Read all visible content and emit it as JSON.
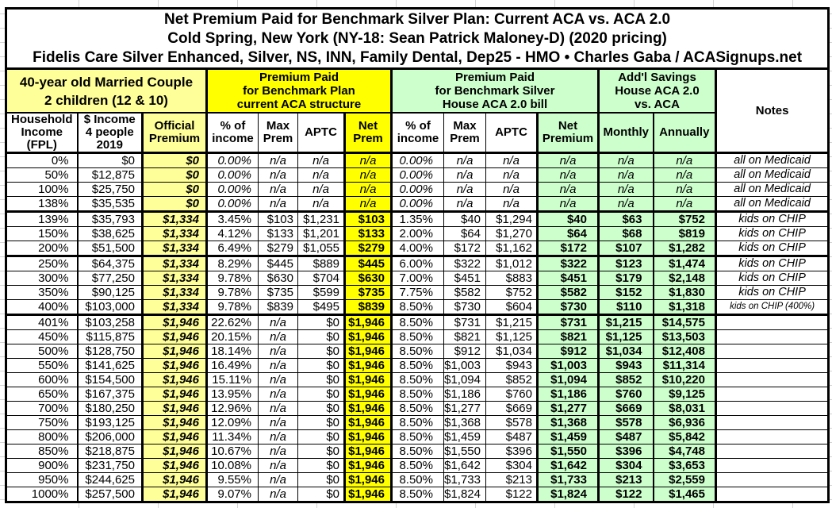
{
  "title_lines": [
    "Net Premium Paid for Benchmark Silver Plan: Current ACA vs. ACA 2.0",
    "Cold Spring, New York (NY-18: Sean Patrick Maloney-D) (2020 pricing)",
    "Fidelis Care Silver Enhanced, Silver, NS, INN, Family Dental, Dep25 - HMO • Charles Gaba / ACASignups.net"
  ],
  "colors": {
    "family_header": "#FFFF99",
    "aca_current_header": "#FFFF00",
    "aca_20_header": "#CCFFCC",
    "border": "#000000",
    "faint_grid": "#D4D4D4"
  },
  "column_groups": {
    "family": {
      "label": "40-year old Married Couple\n2 children (12 & 10)",
      "color": "#FFFF99"
    },
    "aca_current": {
      "label": "Premium Paid\nfor Benchmark Plan\ncurrent ACA structure",
      "color": "#FFFF00"
    },
    "aca_20": {
      "label": "Premium Paid\nfor Benchmark Silver\nHouse ACA 2.0 bill",
      "color": "#CCFFCC"
    },
    "savings": {
      "label": "Add'l Savings\nHouse ACA 2.0\nvs. ACA",
      "color": "#CCFFCC"
    },
    "notes": {
      "label": "Notes"
    }
  },
  "columns": [
    "Household\nIncome\n(FPL)",
    "$ Income\n4 people\n2019",
    "Official\nPremium",
    "% of\nincome",
    "Max\nPrem",
    "APTC",
    "Net\nPrem",
    "% of\nincome",
    "Max\nPrem",
    "APTC",
    "Net\nPremium",
    "Monthly",
    "Annually"
  ],
  "rows": [
    {
      "band": "medicaid",
      "sep": false,
      "cells": [
        "0%",
        "$0",
        "$0",
        "0.00%",
        "n/a",
        "n/a",
        "n/a",
        "0.00%",
        "n/a",
        "n/a",
        "n/a",
        "n/a",
        "n/a",
        "all on Medicaid"
      ]
    },
    {
      "band": "medicaid",
      "sep": false,
      "cells": [
        "50%",
        "$12,875",
        "$0",
        "0.00%",
        "n/a",
        "n/a",
        "n/a",
        "0.00%",
        "n/a",
        "n/a",
        "n/a",
        "n/a",
        "n/a",
        "all on Medicaid"
      ]
    },
    {
      "band": "medicaid",
      "sep": false,
      "cells": [
        "100%",
        "$25,750",
        "$0",
        "0.00%",
        "n/a",
        "n/a",
        "n/a",
        "0.00%",
        "n/a",
        "n/a",
        "n/a",
        "n/a",
        "n/a",
        "all on Medicaid"
      ]
    },
    {
      "band": "medicaid",
      "sep": true,
      "cells": [
        "138%",
        "$35,535",
        "$0",
        "0.00%",
        "n/a",
        "n/a",
        "n/a",
        "0.00%",
        "n/a",
        "n/a",
        "n/a",
        "n/a",
        "n/a",
        "all on Medicaid"
      ]
    },
    {
      "band": "chip",
      "sep": false,
      "cells": [
        "139%",
        "$35,793",
        "$1,334",
        "3.45%",
        "$103",
        "$1,231",
        "$103",
        "1.35%",
        "$40",
        "$1,294",
        "$40",
        "$63",
        "$752",
        "kids on CHIP"
      ]
    },
    {
      "band": "chip",
      "sep": false,
      "cells": [
        "150%",
        "$38,625",
        "$1,334",
        "4.12%",
        "$133",
        "$1,201",
        "$133",
        "2.00%",
        "$64",
        "$1,270",
        "$64",
        "$68",
        "$819",
        "kids on CHIP"
      ]
    },
    {
      "band": "chip",
      "sep": true,
      "cells": [
        "200%",
        "$51,500",
        "$1,334",
        "6.49%",
        "$279",
        "$1,055",
        "$279",
        "4.00%",
        "$172",
        "$1,162",
        "$172",
        "$107",
        "$1,282",
        "kids on CHIP"
      ]
    },
    {
      "band": "chip",
      "sep": false,
      "cells": [
        "250%",
        "$64,375",
        "$1,334",
        "8.29%",
        "$445",
        "$889",
        "$445",
        "6.00%",
        "$322",
        "$1,012",
        "$322",
        "$123",
        "$1,474",
        "kids on CHIP"
      ]
    },
    {
      "band": "chip",
      "sep": false,
      "cells": [
        "300%",
        "$77,250",
        "$1,334",
        "9.78%",
        "$630",
        "$704",
        "$630",
        "7.00%",
        "$451",
        "$883",
        "$451",
        "$179",
        "$2,148",
        "kids on CHIP"
      ]
    },
    {
      "band": "chip",
      "sep": false,
      "cells": [
        "350%",
        "$90,125",
        "$1,334",
        "9.78%",
        "$735",
        "$599",
        "$735",
        "7.75%",
        "$582",
        "$752",
        "$582",
        "$152",
        "$1,830",
        "kids on CHIP"
      ]
    },
    {
      "band": "chip",
      "sep": true,
      "cells": [
        "400%",
        "$103,000",
        "$1,334",
        "9.78%",
        "$839",
        "$495",
        "$839",
        "8.50%",
        "$730",
        "$604",
        "$730",
        "$110",
        "$1,318",
        "kids on CHIP (400%)"
      ]
    },
    {
      "band": "over400",
      "sep": false,
      "cells": [
        "401%",
        "$103,258",
        "$1,946",
        "22.62%",
        "n/a",
        "$0",
        "$1,946",
        "8.50%",
        "$731",
        "$1,215",
        "$731",
        "$1,215",
        "$14,575",
        ""
      ]
    },
    {
      "band": "over400",
      "sep": false,
      "cells": [
        "450%",
        "$115,875",
        "$1,946",
        "20.15%",
        "n/a",
        "$0",
        "$1,946",
        "8.50%",
        "$821",
        "$1,125",
        "$821",
        "$1,125",
        "$13,503",
        ""
      ]
    },
    {
      "band": "over400",
      "sep": false,
      "cells": [
        "500%",
        "$128,750",
        "$1,946",
        "18.14%",
        "n/a",
        "$0",
        "$1,946",
        "8.50%",
        "$912",
        "$1,034",
        "$912",
        "$1,034",
        "$12,408",
        ""
      ]
    },
    {
      "band": "over400",
      "sep": false,
      "cells": [
        "550%",
        "$141,625",
        "$1,946",
        "16.49%",
        "n/a",
        "$0",
        "$1,946",
        "8.50%",
        "$1,003",
        "$943",
        "$1,003",
        "$943",
        "$11,314",
        ""
      ]
    },
    {
      "band": "over400",
      "sep": false,
      "cells": [
        "600%",
        "$154,500",
        "$1,946",
        "15.11%",
        "n/a",
        "$0",
        "$1,946",
        "8.50%",
        "$1,094",
        "$852",
        "$1,094",
        "$852",
        "$10,220",
        ""
      ]
    },
    {
      "band": "over400",
      "sep": false,
      "cells": [
        "650%",
        "$167,375",
        "$1,946",
        "13.95%",
        "n/a",
        "$0",
        "$1,946",
        "8.50%",
        "$1,186",
        "$760",
        "$1,186",
        "$760",
        "$9,125",
        ""
      ]
    },
    {
      "band": "over400",
      "sep": false,
      "cells": [
        "700%",
        "$180,250",
        "$1,946",
        "12.96%",
        "n/a",
        "$0",
        "$1,946",
        "8.50%",
        "$1,277",
        "$669",
        "$1,277",
        "$669",
        "$8,031",
        ""
      ]
    },
    {
      "band": "over400",
      "sep": false,
      "cells": [
        "750%",
        "$193,125",
        "$1,946",
        "12.09%",
        "n/a",
        "$0",
        "$1,946",
        "8.50%",
        "$1,368",
        "$578",
        "$1,368",
        "$578",
        "$6,936",
        ""
      ]
    },
    {
      "band": "over400",
      "sep": false,
      "cells": [
        "800%",
        "$206,000",
        "$1,946",
        "11.34%",
        "n/a",
        "$0",
        "$1,946",
        "8.50%",
        "$1,459",
        "$487",
        "$1,459",
        "$487",
        "$5,842",
        ""
      ]
    },
    {
      "band": "over400",
      "sep": false,
      "cells": [
        "850%",
        "$218,875",
        "$1,946",
        "10.67%",
        "n/a",
        "$0",
        "$1,946",
        "8.50%",
        "$1,550",
        "$396",
        "$1,550",
        "$396",
        "$4,748",
        ""
      ]
    },
    {
      "band": "over400",
      "sep": false,
      "cells": [
        "900%",
        "$231,750",
        "$1,946",
        "10.08%",
        "n/a",
        "$0",
        "$1,946",
        "8.50%",
        "$1,642",
        "$304",
        "$1,642",
        "$304",
        "$3,653",
        ""
      ]
    },
    {
      "band": "over400",
      "sep": false,
      "cells": [
        "950%",
        "$244,625",
        "$1,946",
        "9.55%",
        "n/a",
        "$0",
        "$1,946",
        "8.50%",
        "$1,733",
        "$213",
        "$1,733",
        "$213",
        "$2,559",
        ""
      ]
    },
    {
      "band": "over400",
      "sep": false,
      "cells": [
        "1000%",
        "$257,500",
        "$1,946",
        "9.07%",
        "n/a",
        "$0",
        "$1,946",
        "8.50%",
        "$1,824",
        "$122",
        "$1,824",
        "$122",
        "$1,465",
        ""
      ]
    }
  ]
}
